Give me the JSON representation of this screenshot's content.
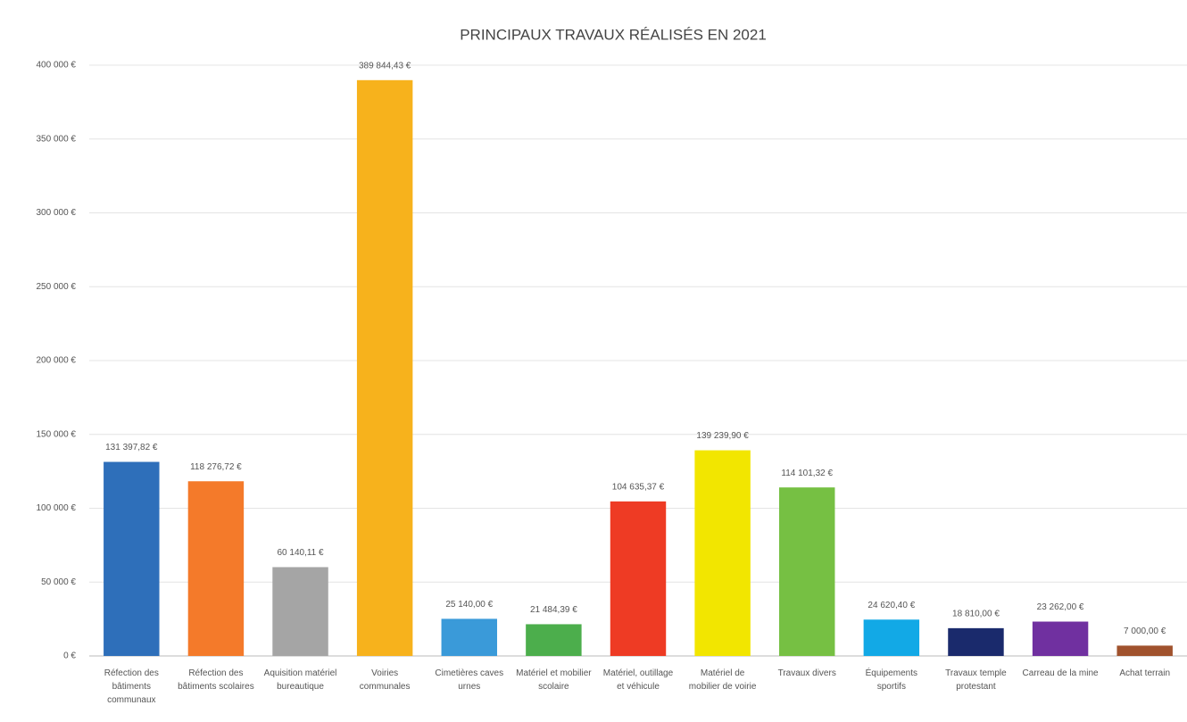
{
  "chart_data": {
    "type": "bar",
    "title": "PRINCIPAUX TRAVAUX RÉALISÉS EN 2021",
    "categories": [
      "Réfection des bâtiments communaux",
      "Réfection des bâtiments scolaires",
      "Aquisition matériel bureautique",
      "Voiries communales",
      "Cimetières caves urnes",
      "Matériel et mobilier scolaire",
      "Matériel, outillage et véhicule",
      "Matériel de mobilier de voirie",
      "Travaux divers",
      "Équipements sportifs",
      "Travaux temple protestant",
      "Carreau de la mine",
      "Achat terrain"
    ],
    "values": [
      131397.82,
      118276.72,
      60140.11,
      389844.43,
      25140.0,
      21484.39,
      104635.37,
      139239.9,
      114101.32,
      24620.4,
      18810.0,
      23262.0,
      7000.0
    ],
    "value_labels": [
      "131 397,82 €",
      "118 276,72 €",
      "60 140,11 €",
      "389 844,43 €",
      "25 140,00 €",
      "21 484,39 €",
      "104 635,37 €",
      "139 239,90 €",
      "114 101,32 €",
      "24 620,40 €",
      "18 810,00 €",
      "23 262,00 €",
      "7 000,00 €"
    ],
    "colors": [
      "#2e6fba",
      "#f47a2a",
      "#a5a5a5",
      "#f7b21c",
      "#3a9ad9",
      "#4cae4c",
      "#ee3b24",
      "#f2e600",
      "#76c043",
      "#12a9e6",
      "#1a2a6c",
      "#7030a0",
      "#a0522d"
    ],
    "ylim": [
      0,
      400000
    ],
    "yticks": [
      {
        "value": 0,
        "label": "0 €"
      },
      {
        "value": 50000,
        "label": "50 000 €"
      },
      {
        "value": 100000,
        "label": "100 000 €"
      },
      {
        "value": 150000,
        "label": "150 000 €"
      },
      {
        "value": 200000,
        "label": "200 000 €"
      },
      {
        "value": 250000,
        "label": "250 000 €"
      },
      {
        "value": 300000,
        "label": "300 000 €"
      },
      {
        "value": 350000,
        "label": "350 000 €"
      },
      {
        "value": 400000,
        "label": "400 000 €"
      }
    ],
    "grid": true
  }
}
